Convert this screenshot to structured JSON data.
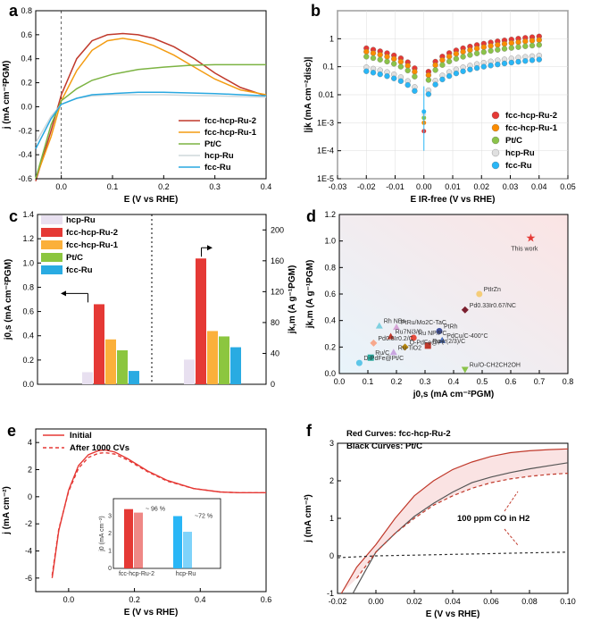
{
  "chart_data": [
    {
      "panel": "a",
      "type": "line",
      "xlabel": "E (V vs RHE)",
      "ylabel": "j (mA cm⁻²PGM)",
      "xlim": [
        -0.05,
        0.4
      ],
      "ylim": [
        -0.6,
        0.8
      ],
      "xticks": [
        "0.0",
        "0.1",
        "0.2",
        "0.3",
        "0.4"
      ],
      "yticks": [
        "-0.6",
        "-0.4",
        "-0.2",
        "0.0",
        "0.2",
        "0.4",
        "0.6",
        "0.8"
      ],
      "series": [
        {
          "name": "fcc-hcp-Ru-2",
          "color": "#c0392b",
          "x": [
            -0.05,
            -0.02,
            0.0,
            0.03,
            0.06,
            0.09,
            0.12,
            0.15,
            0.18,
            0.22,
            0.26,
            0.3,
            0.35,
            0.4
          ],
          "y": [
            -0.62,
            -0.2,
            0.1,
            0.4,
            0.55,
            0.6,
            0.61,
            0.6,
            0.57,
            0.5,
            0.4,
            0.28,
            0.16,
            0.09
          ]
        },
        {
          "name": "fcc-hcp-Ru-1",
          "color": "#f39c12",
          "x": [
            -0.05,
            -0.02,
            0.0,
            0.03,
            0.06,
            0.09,
            0.12,
            0.15,
            0.18,
            0.22,
            0.26,
            0.3,
            0.35,
            0.4
          ],
          "y": [
            -0.6,
            -0.25,
            0.05,
            0.3,
            0.47,
            0.55,
            0.57,
            0.55,
            0.51,
            0.43,
            0.33,
            0.23,
            0.14,
            0.1
          ]
        },
        {
          "name": "Pt/C",
          "color": "#7cb342",
          "x": [
            -0.05,
            -0.02,
            0.0,
            0.03,
            0.06,
            0.1,
            0.15,
            0.2,
            0.25,
            0.3,
            0.35,
            0.4
          ],
          "y": [
            -0.6,
            -0.15,
            0.05,
            0.15,
            0.22,
            0.27,
            0.31,
            0.33,
            0.345,
            0.35,
            0.35,
            0.35
          ]
        },
        {
          "name": "hcp-Ru",
          "color": "#cfd8dc",
          "x": [
            -0.05,
            -0.02,
            0.0,
            0.03,
            0.06,
            0.1,
            0.15,
            0.2,
            0.25,
            0.3,
            0.35,
            0.4
          ],
          "y": [
            -0.3,
            -0.08,
            0.02,
            0.07,
            0.09,
            0.1,
            0.1,
            0.1,
            0.095,
            0.09,
            0.085,
            0.08
          ]
        },
        {
          "name": "fcc-Ru",
          "color": "#29a8e0",
          "x": [
            -0.05,
            -0.02,
            0.0,
            0.03,
            0.06,
            0.1,
            0.15,
            0.2,
            0.25,
            0.3,
            0.35,
            0.4
          ],
          "y": [
            -0.35,
            -0.1,
            0.02,
            0.07,
            0.1,
            0.11,
            0.12,
            0.12,
            0.115,
            0.11,
            0.1,
            0.09
          ]
        }
      ]
    },
    {
      "panel": "b",
      "type": "scatter",
      "xlabel": "E IR-free (V vs RHE)",
      "ylabel": "|jk (mA cm⁻²disc)|",
      "xlim": [
        -0.03,
        0.05
      ],
      "ylim_log": [
        -5,
        1
      ],
      "xticks": [
        "-0.03",
        "-0.02",
        "-0.01",
        "0.00",
        "0.01",
        "0.02",
        "0.03",
        "0.04",
        "0.05"
      ],
      "yticks": [
        "1E-5",
        "1E-4",
        "1E-3",
        "0.01",
        "0.1",
        "1"
      ],
      "series": [
        {
          "name": "fcc-hcp-Ru-2",
          "color": "#e53935",
          "jmax": 1.2
        },
        {
          "name": "fcc-hcp-Ru-1",
          "color": "#fb8c00",
          "jmax": 0.9
        },
        {
          "name": "Pt/C",
          "color": "#8bc34a",
          "jmax": 0.6
        },
        {
          "name": "hcp-Ru",
          "color": "#e0e0e0",
          "jmax": 0.25
        },
        {
          "name": "fcc-Ru",
          "color": "#29b6f6",
          "jmax": 0.18
        }
      ]
    },
    {
      "panel": "c",
      "type": "bar",
      "ylabel_left": "j0,s (mA cm⁻²PGM)",
      "ylabel_right": "jk,m (A g⁻¹PGM)",
      "ylim_left": [
        0,
        1.4
      ],
      "ylim_right": [
        0,
        220
      ],
      "yticks_left": [
        "0.0",
        "0.2",
        "0.4",
        "0.6",
        "0.8",
        "1.0",
        "1.2",
        "1.4"
      ],
      "yticks_right": [
        "0",
        "40",
        "80",
        "120",
        "160",
        "200"
      ],
      "series": [
        {
          "name": "hcp-Ru",
          "color": "#e8e0f0",
          "left": 0.1,
          "right": 32
        },
        {
          "name": "fcc-hcp-Ru-2",
          "color": "#e53935",
          "left": 0.66,
          "right": 163
        },
        {
          "name": "fcc-hcp-Ru-1",
          "color": "#fbb03b",
          "left": 0.37,
          "right": 69
        },
        {
          "name": "Pt/C",
          "color": "#8cc63f",
          "left": 0.28,
          "right": 62
        },
        {
          "name": "fcc-Ru",
          "color": "#29abe2",
          "left": 0.11,
          "right": 48
        }
      ]
    },
    {
      "panel": "d",
      "type": "scatter",
      "xlabel": "j0,s (mA cm⁻²PGM)",
      "ylabel": "jk,m (A g⁻¹PGM)",
      "xlim": [
        0,
        0.8
      ],
      "ylim": [
        0,
        1.2
      ],
      "xticks": [
        "0.0",
        "0.1",
        "0.2",
        "0.3",
        "0.4",
        "0.5",
        "0.6",
        "0.7",
        "0.8"
      ],
      "yticks": [
        "0.0",
        "0.2",
        "0.4",
        "0.6",
        "0.8",
        "1.0",
        "1.2"
      ],
      "points": [
        {
          "label": "This work",
          "x": 0.67,
          "y": 1.02,
          "color": "#e53935",
          "shape": "star"
        },
        {
          "label": "PtIrZn",
          "x": 0.49,
          "y": 0.6,
          "color": "#f5cd79",
          "shape": "circle"
        },
        {
          "label": "Pd0.33Ir0.67/NC",
          "x": 0.44,
          "y": 0.48,
          "color": "#7b1f2e",
          "shape": "diamond"
        },
        {
          "label": "Rh NBs",
          "x": 0.14,
          "y": 0.36,
          "color": "#7fd0e0",
          "shape": "triangle"
        },
        {
          "label": "PtRu/Mo2C-TaC",
          "x": 0.2,
          "y": 0.35,
          "color": "#d7a5d8",
          "shape": "triangle"
        },
        {
          "label": "PtRh",
          "x": 0.35,
          "y": 0.32,
          "color": "#3f4fa0",
          "shape": "circle"
        },
        {
          "label": "Ru7Ni3/C",
          "x": 0.18,
          "y": 0.28,
          "color": "#c0392b",
          "shape": "triangle"
        },
        {
          "label": "Ru NP/PC",
          "x": 0.26,
          "y": 0.27,
          "color": "#e74c3c",
          "shape": "circle"
        },
        {
          "label": "PdCu/C-400°C",
          "x": 0.36,
          "y": 0.25,
          "color": "#4a6fc0",
          "shape": "triangle"
        },
        {
          "label": "Pd0.8Ir0.2/C",
          "x": 0.12,
          "y": 0.23,
          "color": "#f7a88c",
          "shape": "diamond"
        },
        {
          "label": "Ru-Ir(2/3)/C",
          "x": 0.31,
          "y": 0.21,
          "color": "#c0392b",
          "shape": "square"
        },
        {
          "label": "O-PdFe@Pt",
          "x": 0.23,
          "y": 0.2,
          "color": "#b8860b",
          "shape": "diamond"
        },
        {
          "label": "Ru-TiO2",
          "x": 0.19,
          "y": 0.16,
          "color": "#c9a5e0",
          "shape": "triangle"
        },
        {
          "label": "Ru/C",
          "x": 0.11,
          "y": 0.12,
          "color": "#26a69a",
          "shape": "square"
        },
        {
          "label": "D-PdFe@Pt/C",
          "x": 0.07,
          "y": 0.08,
          "color": "#5dc6e8",
          "shape": "circle"
        },
        {
          "label": "Ru/O-CH2CH2OH",
          "x": 0.44,
          "y": 0.03,
          "color": "#8bc34a",
          "shape": "triangle-down"
        }
      ]
    },
    {
      "panel": "e",
      "type": "line",
      "xlabel": "E (V vs RHE)",
      "ylabel": "j (mA cm⁻²)",
      "xlim": [
        -0.1,
        0.6
      ],
      "ylim": [
        -7,
        5
      ],
      "xticks": [
        "0.0",
        "0.2",
        "0.4",
        "0.6"
      ],
      "yticks": [
        "-6",
        "-4",
        "-2",
        "0",
        "2",
        "4"
      ],
      "series": [
        {
          "name": "Initial",
          "color": "#e53935",
          "dash": "",
          "x": [
            -0.05,
            -0.03,
            0.0,
            0.03,
            0.06,
            0.09,
            0.11,
            0.14,
            0.18,
            0.24,
            0.3,
            0.38,
            0.46,
            0.52,
            0.6
          ],
          "y": [
            -6.0,
            -2.5,
            0.5,
            2.3,
            3.1,
            3.4,
            3.45,
            3.3,
            2.8,
            1.9,
            1.2,
            0.6,
            0.35,
            0.3,
            0.3
          ]
        },
        {
          "name": "After 1000 CVs",
          "color": "#e53935",
          "dash": "4,3",
          "x": [
            -0.05,
            -0.03,
            0.0,
            0.03,
            0.06,
            0.09,
            0.11,
            0.14,
            0.18,
            0.24,
            0.3,
            0.38,
            0.46,
            0.52,
            0.6
          ],
          "y": [
            -5.8,
            -2.4,
            0.4,
            2.1,
            2.9,
            3.2,
            3.25,
            3.15,
            2.7,
            1.85,
            1.15,
            0.6,
            0.35,
            0.3,
            0.3
          ]
        }
      ],
      "inset": {
        "ylabel": "j0 (mA cm⁻²)",
        "yticks": [
          "0",
          "1",
          "2",
          "3"
        ],
        "groups": [
          {
            "label": "fcc-hcp-Ru-2",
            "color": "#e53935",
            "before": 3.4,
            "after": 3.2,
            "pct": "~ 96 %"
          },
          {
            "label": "hcp-Ru",
            "color": "#29b6f6",
            "before": 3.0,
            "after": 2.1,
            "pct": "~72 %"
          }
        ]
      }
    },
    {
      "panel": "f",
      "type": "line",
      "xlabel": "E (V vs RHE)",
      "ylabel": "j (mA cm⁻²)",
      "xlim": [
        -0.02,
        0.1
      ],
      "ylim": [
        -1,
        3
      ],
      "xticks": [
        "-0.02",
        "0.00",
        "0.02",
        "0.04",
        "0.06",
        "0.08",
        "0.10"
      ],
      "yticks": [
        "-1",
        "0",
        "1",
        "2",
        "3"
      ],
      "note_red": "Red Curves: fcc-hcp-Ru-2",
      "note_black": "Black Curves: Pt/C",
      "annotation": "100 ppm CO in H2",
      "series": [
        {
          "name": "fcc-hcp-Ru-2",
          "color": "#c0392b",
          "dash": "",
          "x": [
            -0.018,
            -0.01,
            0.0,
            0.01,
            0.02,
            0.03,
            0.04,
            0.05,
            0.06,
            0.07,
            0.08,
            0.09,
            0.1
          ],
          "y": [
            -1.0,
            -0.3,
            0.3,
            1.0,
            1.6,
            2.0,
            2.3,
            2.5,
            2.65,
            2.75,
            2.8,
            2.83,
            2.85
          ]
        },
        {
          "name": "Pt/C",
          "color": "#555555",
          "dash": "",
          "x": [
            -0.012,
            -0.005,
            0.0,
            0.01,
            0.02,
            0.03,
            0.04,
            0.05,
            0.06,
            0.07,
            0.08,
            0.09,
            0.1
          ],
          "y": [
            -1.0,
            -0.35,
            0.1,
            0.6,
            1.05,
            1.4,
            1.7,
            1.95,
            2.1,
            2.22,
            2.32,
            2.4,
            2.48
          ]
        },
        {
          "name": "fcc-hcp-Ru-2 + CO",
          "color": "#c0392b",
          "dash": "4,3",
          "x": [
            -0.01,
            0.0,
            0.01,
            0.02,
            0.03,
            0.04,
            0.05,
            0.06,
            0.07,
            0.08,
            0.09,
            0.1
          ],
          "y": [
            -0.6,
            0.1,
            0.6,
            1.0,
            1.35,
            1.6,
            1.8,
            1.95,
            2.05,
            2.12,
            2.17,
            2.2
          ]
        },
        {
          "name": "Pt/C + CO",
          "color": "#333333",
          "dash": "3,3",
          "x": [
            -0.02,
            0.0,
            0.02,
            0.04,
            0.06,
            0.08,
            0.1
          ],
          "y": [
            -0.05,
            0.0,
            0.02,
            0.04,
            0.06,
            0.08,
            0.1
          ]
        }
      ]
    }
  ]
}
